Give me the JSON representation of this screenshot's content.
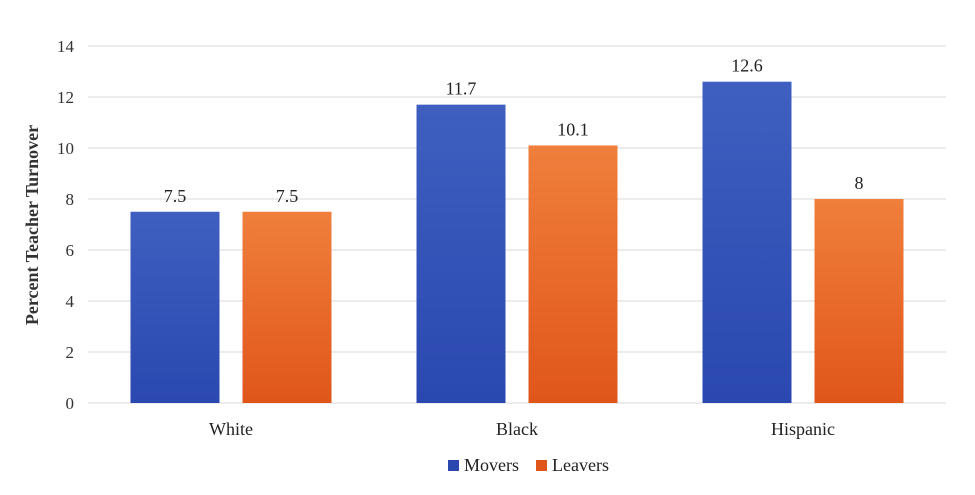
{
  "chart_data": {
    "type": "bar",
    "categories": [
      "White",
      "Black",
      "Hispanic"
    ],
    "series": [
      {
        "name": "Movers",
        "values": [
          7.5,
          11.7,
          12.6
        ],
        "color": "#3f5fc0",
        "color_dark": "#2a48b0"
      },
      {
        "name": "Leavers",
        "values": [
          7.5,
          10.1,
          8
        ],
        "color": "#f07f3c",
        "color_dark": "#e0561a"
      }
    ],
    "data_labels": [
      [
        "7.5",
        "11.7",
        "12.6"
      ],
      [
        "7.5",
        "10.1",
        "8"
      ]
    ],
    "title": "",
    "xlabel": "",
    "ylabel": "Percent Teacher Turnover",
    "ylim": [
      0,
      14
    ],
    "yticks": [
      0,
      2,
      4,
      6,
      8,
      10,
      12,
      14
    ],
    "grid": true,
    "legend_position": "bottom"
  }
}
